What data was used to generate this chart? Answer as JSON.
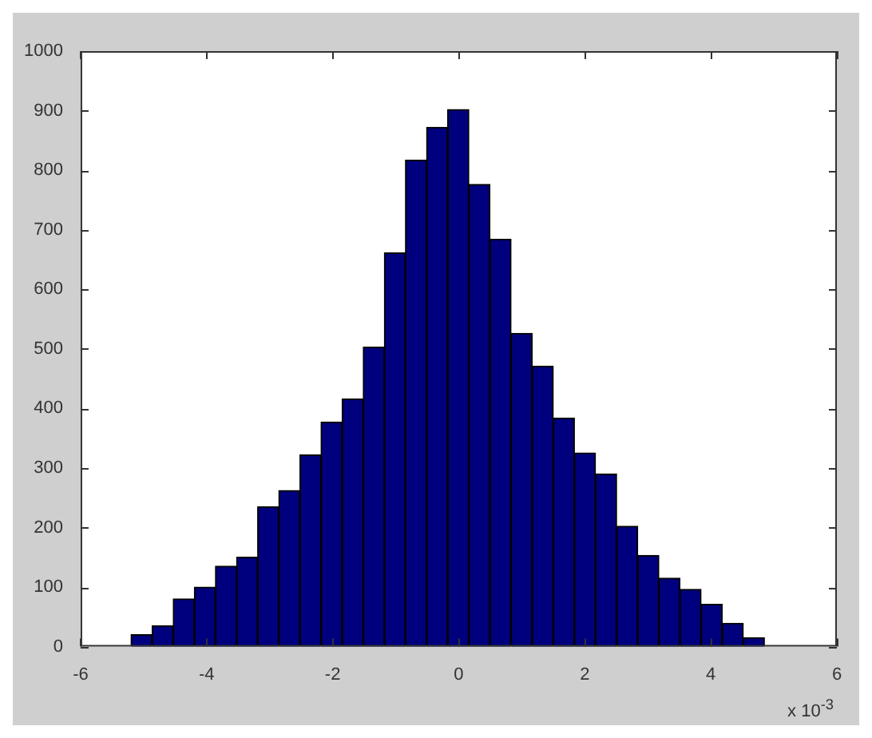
{
  "chart_data": {
    "type": "histogram",
    "bins": [
      -5.2,
      -4.865,
      -4.53,
      -4.195,
      -3.86,
      -3.525,
      -3.19,
      -2.855,
      -2.52,
      -2.185,
      -1.85,
      -1.515,
      -1.18,
      -0.845,
      -0.51,
      -0.175,
      0.16,
      0.495,
      0.83,
      1.165,
      1.5,
      1.835,
      2.17,
      2.505,
      2.84,
      3.175,
      3.51,
      3.845,
      4.18,
      4.515,
      4.85
    ],
    "values": [
      20,
      35,
      80,
      100,
      135,
      150,
      235,
      262,
      322,
      377,
      416,
      503,
      661,
      817,
      872,
      902,
      776,
      684,
      526,
      471,
      384,
      325,
      290,
      202,
      153,
      115,
      96,
      71,
      39,
      15
    ],
    "color": "#00007f",
    "xlim": [
      -6,
      6
    ],
    "xticks": [
      -6,
      -4,
      -2,
      0,
      2,
      4,
      6
    ],
    "ylim": [
      0,
      1000
    ],
    "yticks": [
      0,
      100,
      200,
      300,
      400,
      500,
      600,
      700,
      800,
      900,
      1000
    ],
    "annotations": [
      "x 10$^{-3}$"
    ]
  }
}
